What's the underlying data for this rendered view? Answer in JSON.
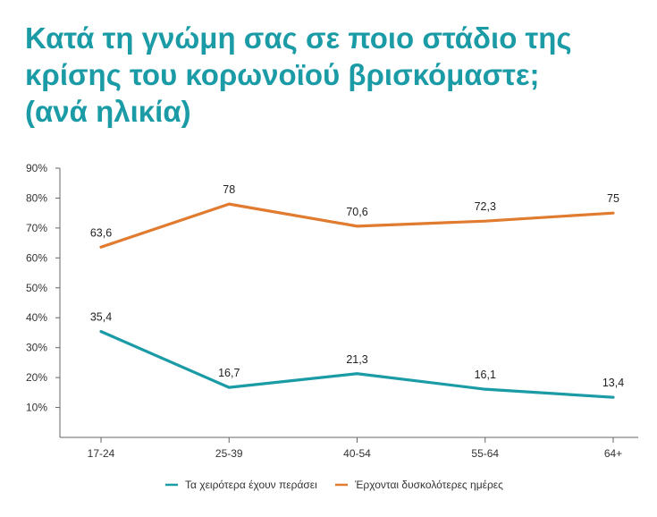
{
  "title_lines": [
    "Κατά τη γνώμη σας σε ποιο στάδιο της",
    "κρίσης του κορωνοϊού βρισκόμαστε;",
    "(ανά ηλικία)"
  ],
  "colors": {
    "title": "#1a9ba6",
    "series_1": "#1a9ba6",
    "series_2": "#e07b2f",
    "axis": "#666666"
  },
  "chart_data": {
    "type": "line",
    "title": "Κατά τη γνώμη σας σε ποιο στάδιο της κρίσης του κορωνοϊού βρισκόμαστε; (ανά ηλικία)",
    "categories": [
      "17-24",
      "25-39",
      "40-54",
      "55-64",
      "64+"
    ],
    "y_ticks": [
      "10%",
      "20%",
      "30%",
      "40%",
      "50%",
      "60%",
      "70%",
      "80%",
      "90%"
    ],
    "ylim": [
      0,
      90
    ],
    "grid": false,
    "legend_position": "bottom",
    "series": [
      {
        "name": "Τα χειρότερα έχουν περάσει",
        "values": [
          35.4,
          16.7,
          21.3,
          16.1,
          13.4
        ],
        "labels": [
          "35,4",
          "16,7",
          "21,3",
          "16,1",
          "13,4"
        ],
        "color": "#1a9ba6"
      },
      {
        "name": "Έρχονται δυσκολότερες ημέρες",
        "values": [
          63.6,
          78,
          70.6,
          72.3,
          75
        ],
        "labels": [
          "63,6",
          "78",
          "70,6",
          "72,3",
          "75"
        ],
        "color": "#e07b2f"
      }
    ]
  }
}
